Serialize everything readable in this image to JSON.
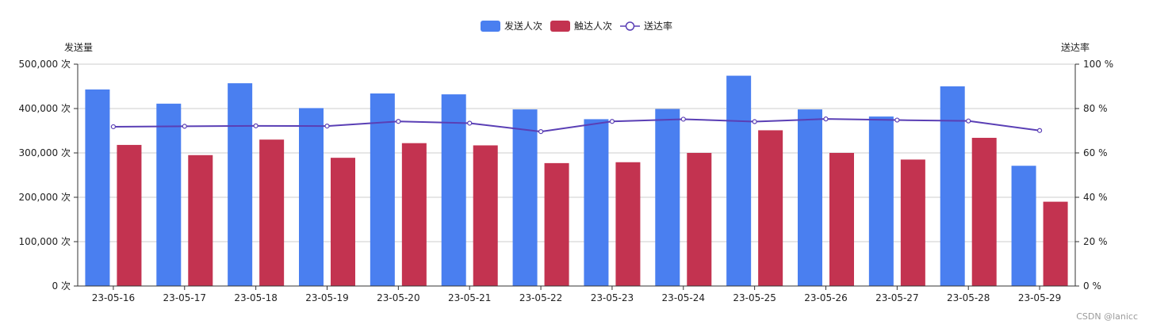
{
  "chart_data": {
    "type": "bar",
    "categories": [
      "23-05-16",
      "23-05-17",
      "23-05-18",
      "23-05-19",
      "23-05-20",
      "23-05-21",
      "23-05-22",
      "23-05-23",
      "23-05-24",
      "23-05-25",
      "23-05-26",
      "23-05-27",
      "23-05-28",
      "23-05-29"
    ],
    "series": [
      {
        "name": "发送人次",
        "type": "bar",
        "axis": "left",
        "color": "#4a7ff0",
        "values": [
          443000,
          411000,
          457000,
          401000,
          434000,
          432000,
          398000,
          376000,
          399000,
          474000,
          398000,
          382000,
          450000,
          271000
        ]
      },
      {
        "name": "触达人次",
        "type": "bar",
        "axis": "left",
        "color": "#c33350",
        "values": [
          318000,
          295000,
          330000,
          289000,
          322000,
          317000,
          277000,
          279000,
          300000,
          351000,
          300000,
          285000,
          334000,
          190000
        ]
      },
      {
        "name": "送达率",
        "type": "line",
        "axis": "right",
        "color": "#5a3fb5",
        "values": [
          71.8,
          72.0,
          72.2,
          72.1,
          74.2,
          73.4,
          69.6,
          74.2,
          75.2,
          74.1,
          75.3,
          74.8,
          74.4,
          70.1
        ]
      }
    ],
    "yleft": {
      "label": "发送量",
      "min": 0,
      "max": 500000,
      "ticks": [
        "0 次",
        "100,000 次",
        "200,000 次",
        "300,000 次",
        "400,000 次",
        "500,000 次"
      ]
    },
    "yright": {
      "label": "送达率",
      "min": 0,
      "max": 100,
      "ticks": [
        "0 %",
        "20 %",
        "40 %",
        "60 %",
        "80 %",
        "100 %"
      ]
    },
    "grid": true,
    "legend_position": "top-center"
  },
  "watermark": "CSDN @lanicc"
}
